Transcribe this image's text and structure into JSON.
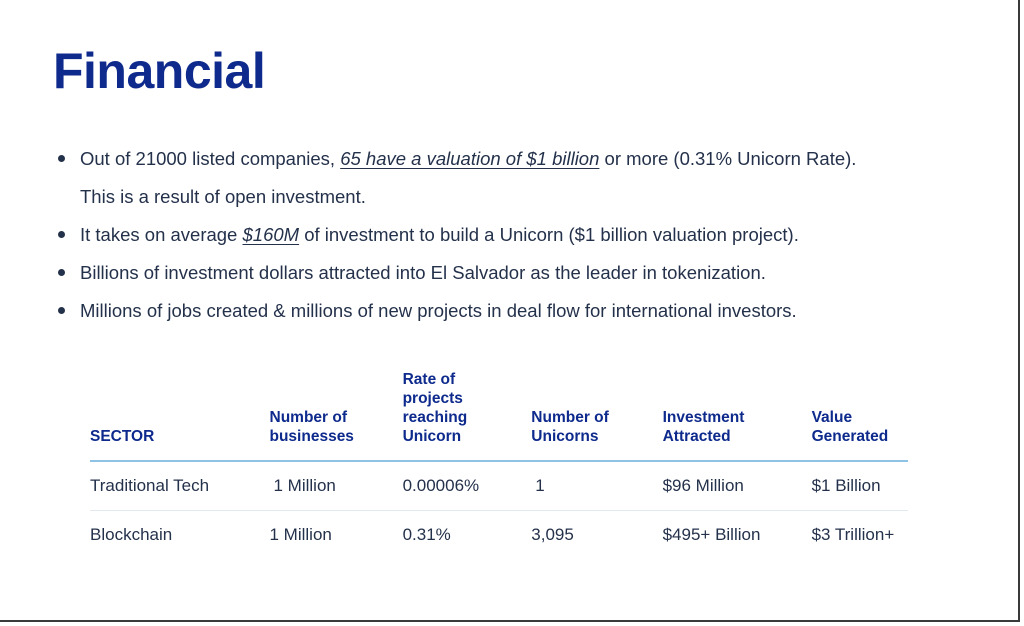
{
  "title": "Financial",
  "bullets": [
    {
      "before": "Out of 21000 listed companies, ",
      "highlight": "65 have a valuation of $1 billion",
      "after": " or more (0.31% Unicorn Rate).",
      "line2": "This is a result of open investment."
    },
    {
      "before": "It takes on average ",
      "highlight": "$160M",
      "after": " of investment to build a Unicorn ($1 billion valuation project)."
    },
    {
      "text": "Billions of investment dollars attracted into El Salvador as the leader in tokenization."
    },
    {
      "text": "Millions of jobs created & millions of new projects in deal flow for international investors."
    }
  ],
  "table": {
    "headers": {
      "sector": "SECTOR",
      "businesses_1": "Number of",
      "businesses_2": "businesses",
      "rate_1": "Rate of",
      "rate_2": "projects",
      "rate_3": "reaching",
      "rate_4": "Unicorn",
      "unicorns_1": "Number of",
      "unicorns_2": "Unicorns",
      "investment_1": "Investment",
      "investment_2": "Attracted",
      "value_1": "Value",
      "value_2": "Generated"
    },
    "rows": [
      {
        "sector": "Traditional Tech",
        "businesses": "1 Million",
        "rate": "0.00006%",
        "unicorns": "1",
        "investment": "$96 Million",
        "value": "$1 Billion"
      },
      {
        "sector": "Blockchain",
        "businesses": "1 Million",
        "rate": "0.31%",
        "unicorns": "3,095",
        "investment": "$495+ Billion",
        "value": "$3 Trillion+"
      }
    ]
  }
}
